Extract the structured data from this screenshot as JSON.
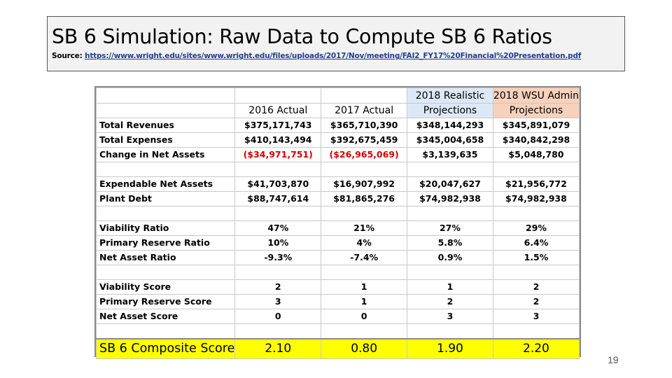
{
  "slide": {
    "title": "SB 6 Simulation: Raw Data to Compute SB 6 Ratios",
    "source_label": "Source:",
    "source_url": "https://www.wright.edu/sites/www.wright.edu/files/uploads/2017/Nov/meeting/FAI2_FY17%20Financial%20Presentation.pdf",
    "page_number": "19"
  },
  "table": {
    "headers": {
      "col1_top": "",
      "col1": "2016 Actual",
      "col2_top": "",
      "col2": "2017 Actual",
      "col3_top": "2018 Realistic",
      "col3": "Projections",
      "col4_top": "2018 WSU Admin",
      "col4": "Projections"
    },
    "rows": {
      "total_revenues": {
        "label": "Total Revenues",
        "v": [
          "$375,171,743",
          "$365,710,390",
          "$348,144,293",
          "$345,891,079"
        ]
      },
      "total_expenses": {
        "label": "Total Expenses",
        "v": [
          "$410,143,494",
          "$392,675,459",
          "$345,004,658",
          "$340,842,298"
        ]
      },
      "change_net_assets": {
        "label": "Change in Net Assets",
        "v": [
          "($34,971,751)",
          "($26,965,069)",
          "$3,139,635",
          "$5,048,780"
        ]
      },
      "expendable_net_assets": {
        "label": "Expendable Net Assets",
        "v": [
          "$41,703,870",
          "$16,907,992",
          "$20,047,627",
          "$21,956,772"
        ]
      },
      "plant_debt": {
        "label": "Plant Debt",
        "v": [
          "$88,747,614",
          "$81,865,276",
          "$74,982,938",
          "$74,982,938"
        ]
      },
      "viability_ratio": {
        "label": "Viability Ratio",
        "v": [
          "47%",
          "21%",
          "27%",
          "29%"
        ]
      },
      "primary_reserve_ratio": {
        "label": "Primary Reserve Ratio",
        "v": [
          "10%",
          "4%",
          "5.8%",
          "6.4%"
        ]
      },
      "net_asset_ratio": {
        "label": "Net Asset Ratio",
        "v": [
          "-9.3%",
          "-7.4%",
          "0.9%",
          "1.5%"
        ]
      },
      "viability_score": {
        "label": "Viability Score",
        "v": [
          "2",
          "1",
          "1",
          "2"
        ]
      },
      "primary_reserve_score": {
        "label": "Primary Reserve Score",
        "v": [
          "3",
          "1",
          "2",
          "2"
        ]
      },
      "net_asset_score": {
        "label": "Net Asset Score",
        "v": [
          "0",
          "0",
          "3",
          "3"
        ]
      },
      "composite_score": {
        "label": "SB 6 Composite Score",
        "v": [
          "2.10",
          "0.80",
          "1.90",
          "2.20"
        ]
      }
    }
  },
  "colors": {
    "negative": "#d40000",
    "header_blue": "#dce8f5",
    "header_peach": "#f7d1bb",
    "composite_highlight": "#ffff00",
    "link": "#1f3f8f"
  }
}
